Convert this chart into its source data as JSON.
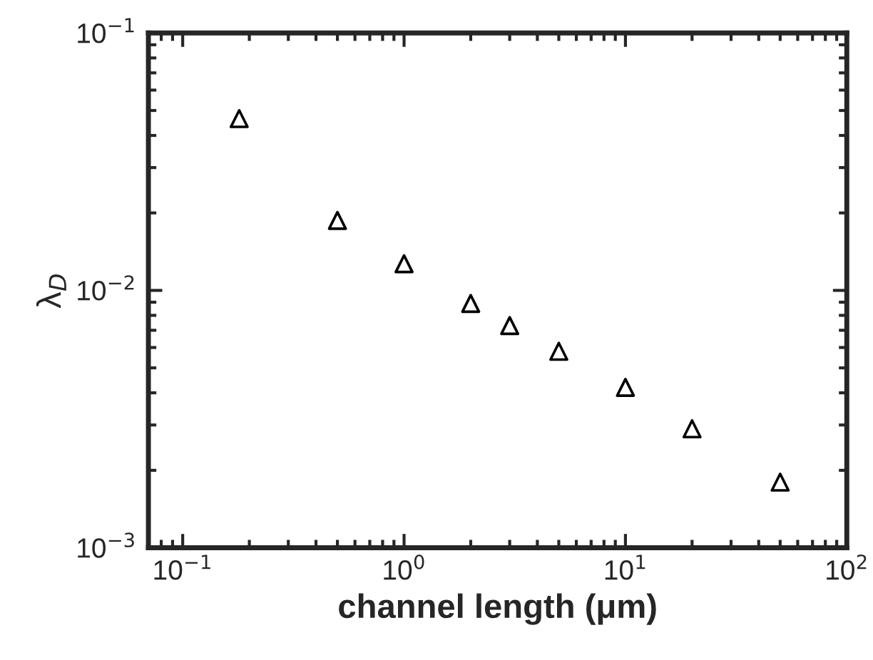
{
  "chart_data": {
    "type": "scatter",
    "xlabel": "channel length (μm)",
    "ylabel": "λ$_{D}$",
    "x": [
      0.18,
      0.5,
      1,
      2,
      3,
      5,
      10,
      20,
      50
    ],
    "series": [
      {
        "color": "#000000",
        "values": [
          0.0465,
          0.0187,
          0.0127,
          0.0089,
          0.0073,
          0.0058,
          0.0042,
          0.0029,
          0.0018
        ]
      }
    ],
    "log": "xy",
    "marker": "triangle",
    "grid": false,
    "legend": false,
    "xlim": [
      0.07,
      100
    ],
    "ylim": [
      0.001,
      0.1
    ],
    "xticks": [
      {
        "value": 0.1,
        "label": "10$^{−1}$"
      },
      {
        "value": 1,
        "label": "10$^{0}$"
      },
      {
        "value": 10,
        "label": "10$^{1}$"
      },
      {
        "value": 100,
        "label": "10$^{2}$"
      }
    ],
    "yticks": [
      {
        "value": 0.001,
        "label": "10$^{−3}$"
      },
      {
        "value": 0.01,
        "label": "10$^{−2}$"
      },
      {
        "value": 0.1,
        "label": "10$^{−1}$"
      }
    ]
  }
}
